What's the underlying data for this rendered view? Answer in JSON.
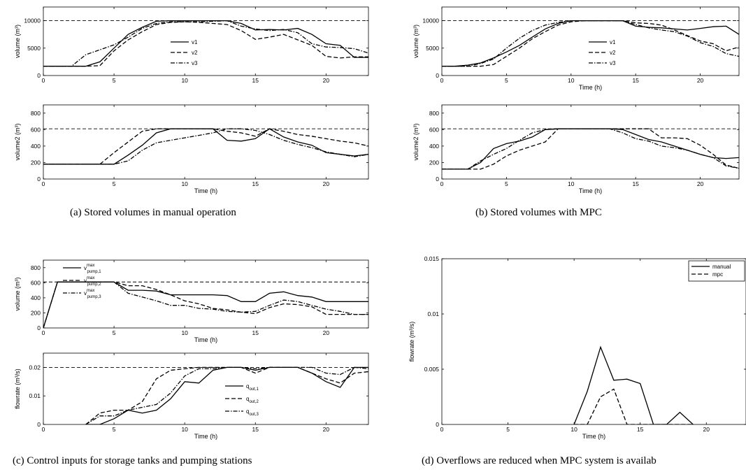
{
  "captions": {
    "a": "(a) Stored volumes in manual operation",
    "b": "(b) Stored volumes with MPC",
    "c": "(c) Control inputs for storage tanks and pumping stations",
    "d": "(d) Overflows are reduced when MPC system is availab"
  },
  "chart_data": [
    {
      "id": "a-top",
      "type": "line",
      "xlabel": "Time (h)",
      "ylabel": "volume (m³)",
      "xlim": [
        0,
        23
      ],
      "ylim": [
        0,
        12500
      ],
      "xticks": [
        0,
        5,
        10,
        15,
        20
      ],
      "yticks": [
        0,
        5000,
        10000
      ],
      "show_xlabel": false,
      "legend": "center-right",
      "hline": 10000,
      "x": [
        0,
        1,
        2,
        3,
        4,
        5,
        6,
        7,
        8,
        9,
        10,
        11,
        12,
        13,
        14,
        15,
        16,
        17,
        18,
        19,
        20,
        21,
        22,
        23
      ],
      "series": [
        {
          "name": "v1",
          "style": "solid",
          "values": [
            1700,
            1700,
            1700,
            1700,
            2500,
            5000,
            7500,
            8800,
            9900,
            10000,
            10000,
            10000,
            10000,
            10000,
            9500,
            8300,
            8400,
            8300,
            8600,
            7500,
            5800,
            5500,
            3300,
            3300
          ]
        },
        {
          "name": "v2",
          "style": "dashed",
          "values": [
            1700,
            1700,
            1700,
            1700,
            1800,
            4500,
            6500,
            8000,
            9300,
            9700,
            9800,
            9700,
            9500,
            9300,
            8200,
            6600,
            7000,
            7500,
            6500,
            5500,
            3500,
            3200,
            3400,
            3400
          ]
        },
        {
          "name": "v3",
          "style": "dashdot",
          "values": [
            1700,
            1700,
            1700,
            3800,
            4700,
            5600,
            7000,
            8600,
            9500,
            9800,
            9800,
            9800,
            9900,
            10000,
            9000,
            8500,
            8200,
            8400,
            7800,
            5800,
            5200,
            5100,
            4900,
            4100
          ]
        }
      ]
    },
    {
      "id": "a-bottom",
      "type": "line",
      "xlabel": "Time (h)",
      "ylabel": "volume2 (m³)",
      "xlim": [
        0,
        23
      ],
      "ylim": [
        0,
        900
      ],
      "xticks": [
        0,
        5,
        10,
        15,
        20
      ],
      "yticks": [
        0,
        200,
        400,
        600,
        800
      ],
      "show_xlabel": true,
      "hline": 610,
      "x": [
        0,
        1,
        2,
        3,
        4,
        5,
        6,
        7,
        8,
        9,
        10,
        11,
        12,
        13,
        14,
        15,
        16,
        17,
        18,
        19,
        20,
        21,
        22,
        23
      ],
      "series": [
        {
          "name": "",
          "style": "solid",
          "values": [
            180,
            180,
            180,
            180,
            180,
            180,
            290,
            410,
            560,
            610,
            610,
            610,
            610,
            470,
            460,
            490,
            610,
            510,
            450,
            410,
            320,
            300,
            280,
            300
          ]
        },
        {
          "name": "",
          "style": "dashed",
          "values": [
            180,
            180,
            180,
            180,
            180,
            320,
            450,
            580,
            610,
            610,
            610,
            610,
            610,
            580,
            560,
            520,
            610,
            580,
            540,
            520,
            490,
            460,
            440,
            400
          ]
        },
        {
          "name": "",
          "style": "dashdot",
          "values": [
            180,
            180,
            180,
            180,
            180,
            180,
            220,
            350,
            440,
            470,
            500,
            530,
            560,
            610,
            610,
            590,
            540,
            470,
            420,
            380,
            330,
            300,
            270,
            300
          ]
        }
      ]
    },
    {
      "id": "b-top",
      "type": "line",
      "xlabel": "Time (h)",
      "ylabel": "volume (m³)",
      "xlim": [
        0,
        23
      ],
      "ylim": [
        0,
        12500
      ],
      "xticks": [
        0,
        5,
        10,
        15,
        20
      ],
      "yticks": [
        0,
        5000,
        10000
      ],
      "show_xlabel": true,
      "legend": "center-right",
      "hline": 10000,
      "x": [
        0,
        1,
        2,
        3,
        4,
        5,
        6,
        7,
        8,
        9,
        10,
        11,
        12,
        13,
        14,
        15,
        16,
        17,
        18,
        19,
        20,
        21,
        22,
        23
      ],
      "series": [
        {
          "name": "v1",
          "style": "solid",
          "values": [
            1700,
            1700,
            1900,
            2300,
            3200,
            4300,
            5500,
            7000,
            8500,
            9500,
            10000,
            10000,
            10000,
            10000,
            10000,
            9000,
            8800,
            8700,
            8500,
            8300,
            8600,
            8900,
            9000,
            7500
          ]
        },
        {
          "name": "v2",
          "style": "dashed",
          "values": [
            1700,
            1700,
            1700,
            1700,
            2000,
            3500,
            5000,
            6700,
            8000,
            9200,
            9800,
            10000,
            10000,
            10000,
            10000,
            9600,
            9500,
            9200,
            8300,
            7300,
            6300,
            5800,
            4500,
            5200
          ]
        },
        {
          "name": "v3",
          "style": "dashdot",
          "values": [
            1700,
            1700,
            1700,
            2200,
            3000,
            5000,
            6800,
            8200,
            9200,
            9700,
            10000,
            10000,
            10000,
            10000,
            10000,
            9300,
            8700,
            8300,
            8000,
            7200,
            6000,
            5300,
            4000,
            3500
          ]
        }
      ]
    },
    {
      "id": "b-bottom",
      "type": "line",
      "xlabel": "Time (h)",
      "ylabel": "volume2 (m³)",
      "xlim": [
        0,
        23
      ],
      "ylim": [
        0,
        900
      ],
      "xticks": [
        0,
        5,
        10,
        15,
        20
      ],
      "yticks": [
        0,
        200,
        400,
        600,
        800
      ],
      "show_xlabel": true,
      "hline": 610,
      "x": [
        0,
        1,
        2,
        3,
        4,
        5,
        6,
        7,
        8,
        9,
        10,
        11,
        12,
        13,
        14,
        15,
        16,
        17,
        18,
        19,
        20,
        21,
        22,
        23
      ],
      "series": [
        {
          "name": "",
          "style": "solid",
          "values": [
            120,
            120,
            120,
            200,
            370,
            430,
            460,
            510,
            600,
            610,
            610,
            610,
            610,
            610,
            600,
            540,
            480,
            450,
            400,
            350,
            300,
            260,
            250,
            260
          ]
        },
        {
          "name": "",
          "style": "dashed",
          "values": [
            120,
            120,
            120,
            120,
            180,
            280,
            350,
            400,
            450,
            610,
            610,
            610,
            610,
            610,
            610,
            610,
            610,
            500,
            500,
            490,
            410,
            300,
            170,
            130
          ]
        },
        {
          "name": "",
          "style": "dashdot",
          "values": [
            120,
            120,
            120,
            220,
            300,
            370,
            470,
            560,
            600,
            610,
            610,
            610,
            610,
            610,
            560,
            490,
            460,
            400,
            380,
            350,
            300,
            260,
            160,
            130
          ]
        }
      ]
    },
    {
      "id": "c-top",
      "type": "line",
      "xlabel": "Time (h)",
      "ylabel": "volume (m³)",
      "xlim": [
        0,
        23
      ],
      "ylim": [
        0,
        900
      ],
      "xticks": [
        0,
        5,
        10,
        15,
        20
      ],
      "yticks": [
        0,
        200,
        400,
        600,
        800
      ],
      "show_xlabel": true,
      "legend": "left",
      "hline": 610,
      "x": [
        0,
        1,
        2,
        3,
        4,
        5,
        6,
        7,
        8,
        9,
        10,
        11,
        12,
        13,
        14,
        15,
        16,
        17,
        18,
        19,
        20,
        21,
        22,
        23
      ],
      "series": [
        {
          "name": "v",
          "sup": "max",
          "sub": "pump,1",
          "style": "solid",
          "values": [
            0,
            610,
            610,
            610,
            610,
            610,
            500,
            500,
            490,
            440,
            440,
            440,
            440,
            430,
            350,
            350,
            460,
            480,
            430,
            410,
            350,
            350,
            350,
            350
          ]
        },
        {
          "name": "v",
          "sup": "max",
          "sub": "pump,2",
          "style": "dashed",
          "values": [
            0,
            610,
            610,
            610,
            610,
            610,
            560,
            560,
            510,
            440,
            360,
            320,
            260,
            240,
            210,
            190,
            270,
            320,
            310,
            280,
            180,
            180,
            180,
            180
          ]
        },
        {
          "name": "v",
          "sup": "max",
          "sub": "pump,3",
          "style": "dashdot",
          "values": [
            0,
            610,
            610,
            610,
            610,
            610,
            460,
            410,
            360,
            300,
            300,
            260,
            250,
            220,
            210,
            220,
            300,
            370,
            350,
            300,
            250,
            220,
            180,
            180
          ]
        }
      ]
    },
    {
      "id": "c-bottom",
      "type": "line",
      "xlabel": "Time (h)",
      "ylabel": "flowrate (m³/s)",
      "xlim": [
        0,
        23
      ],
      "ylim": [
        0,
        0.025
      ],
      "xticks": [
        0,
        5,
        10,
        15,
        20
      ],
      "yticks": [
        0,
        0.01,
        0.02
      ],
      "show_xlabel": true,
      "legend": "center-right",
      "hline": 0.02,
      "x": [
        3,
        4,
        5,
        6,
        7,
        8,
        9,
        10,
        11,
        12,
        13,
        14,
        15,
        16,
        17,
        18,
        19,
        20,
        21,
        22,
        23
      ],
      "series": [
        {
          "name": "q",
          "sub": "out,1",
          "style": "solid",
          "values": [
            0,
            0,
            0.002,
            0.005,
            0.004,
            0.005,
            0.009,
            0.015,
            0.0145,
            0.019,
            0.02,
            0.02,
            0.019,
            0.02,
            0.02,
            0.02,
            0.018,
            0.015,
            0.013,
            0.02,
            0.02
          ]
        },
        {
          "name": "q",
          "sub": "out,2",
          "style": "dashed",
          "values": [
            0,
            0.004,
            0.005,
            0.005,
            0.008,
            0.016,
            0.019,
            0.0195,
            0.02,
            0.02,
            0.02,
            0.02,
            0.018,
            0.02,
            0.02,
            0.02,
            0.018,
            0.016,
            0.0145,
            0.018,
            0.0185
          ]
        },
        {
          "name": "q",
          "sub": "out,3",
          "style": "dashdot",
          "values": [
            0,
            0.003,
            0.003,
            0.005,
            0.006,
            0.007,
            0.011,
            0.017,
            0.0195,
            0.0195,
            0.02,
            0.02,
            0.0195,
            0.02,
            0.02,
            0.02,
            0.02,
            0.018,
            0.0175,
            0.02,
            0.0195
          ]
        }
      ]
    },
    {
      "id": "d",
      "type": "line",
      "xlabel": "Time (h)",
      "ylabel": "flowrate (m³/s)",
      "xlim": [
        0,
        23
      ],
      "ylim": [
        0,
        0.015
      ],
      "xticks": [
        0,
        5,
        10,
        15,
        20
      ],
      "yticks": [
        0,
        0.005,
        0.01,
        0.015
      ],
      "ytick_labels": [
        "0",
        "0.005",
        "0.01",
        "0.015"
      ],
      "show_xlabel": true,
      "legend": "top-right",
      "x": [
        10,
        11,
        12,
        13,
        14,
        15,
        16,
        17,
        18,
        19
      ],
      "series": [
        {
          "name": "manual",
          "style": "solid",
          "values": [
            0,
            0.003,
            0.007,
            0.004,
            0.0041,
            0.0037,
            0,
            0,
            0.0011,
            0
          ]
        },
        {
          "name": "mpc",
          "style": "dashed",
          "values": [
            0,
            0,
            0.0025,
            0.0032,
            0,
            0,
            0,
            0,
            0,
            0
          ]
        }
      ]
    }
  ]
}
